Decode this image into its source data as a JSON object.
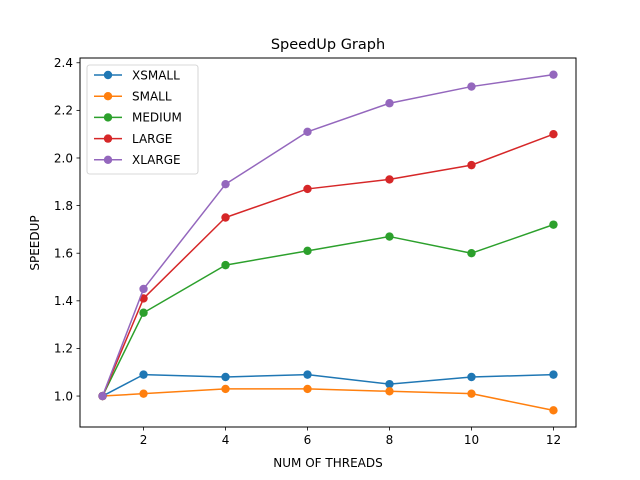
{
  "chart_data": {
    "type": "line",
    "title": "SpeedUp Graph",
    "xlabel": "NUM OF THREADS",
    "ylabel": "SPEEDUP",
    "x": [
      1,
      2,
      4,
      6,
      8,
      10,
      12
    ],
    "xticks": [
      2,
      4,
      6,
      8,
      10,
      12
    ],
    "xtick_labels": [
      "2",
      "4",
      "6",
      "8",
      "10",
      "12"
    ],
    "yticks": [
      1.0,
      1.2,
      1.4,
      1.6,
      1.8,
      2.0,
      2.2,
      2.4
    ],
    "ytick_labels": [
      "1.0",
      "1.2",
      "1.4",
      "1.6",
      "1.8",
      "2.0",
      "2.2",
      "2.4"
    ],
    "xlim": [
      0.45,
      12.55
    ],
    "ylim": [
      0.87,
      2.42
    ],
    "grid": false,
    "legend_position": "upper-left",
    "series": [
      {
        "name": "XSMALL",
        "color": "#1f77b4",
        "values": [
          1.0,
          1.09,
          1.08,
          1.09,
          1.05,
          1.08,
          1.09
        ]
      },
      {
        "name": "SMALL",
        "color": "#ff7f0e",
        "values": [
          1.0,
          1.01,
          1.03,
          1.03,
          1.02,
          1.01,
          0.94
        ]
      },
      {
        "name": "MEDIUM",
        "color": "#2ca02c",
        "values": [
          1.0,
          1.35,
          1.55,
          1.61,
          1.67,
          1.6,
          1.72
        ]
      },
      {
        "name": "LARGE",
        "color": "#d62728",
        "values": [
          1.0,
          1.41,
          1.75,
          1.87,
          1.91,
          1.97,
          2.1
        ]
      },
      {
        "name": "XLARGE",
        "color": "#9467bd",
        "values": [
          1.0,
          1.45,
          1.89,
          2.11,
          2.23,
          2.3,
          2.35
        ]
      }
    ]
  }
}
